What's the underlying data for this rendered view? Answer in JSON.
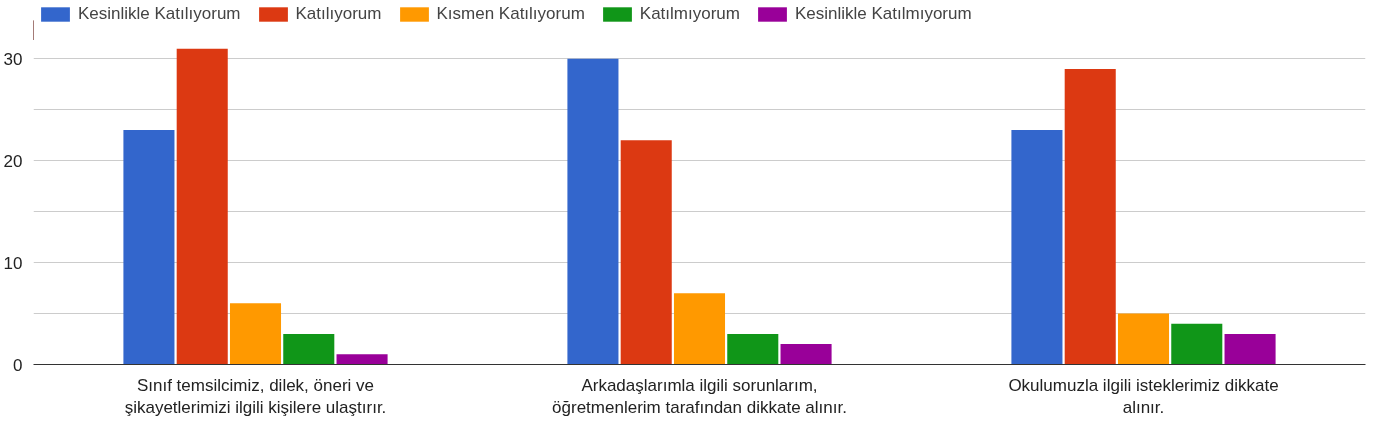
{
  "chart_data": {
    "type": "bar",
    "categories": [
      "Sınıf temsilcimiz, dilek, öneri ve şikayetlerimizi ilgili kişilere ulaştırır.",
      "Arkadaşlarımla ilgili sorunlarım, öğretmenlerim tarafından dikkate alınır.",
      "Okulumuzla ilgili isteklerimiz dikkate alınır."
    ],
    "series": [
      {
        "name": "Kesinlikle Katılıyorum",
        "color": "#3366cc",
        "values": [
          23,
          30,
          23
        ]
      },
      {
        "name": "Katılıyorum",
        "color": "#dc3912",
        "values": [
          31,
          22,
          29
        ]
      },
      {
        "name": "Kısmen Katılıyorum",
        "color": "#ff9900",
        "values": [
          6,
          7,
          5
        ]
      },
      {
        "name": "Katılmıyorum",
        "color": "#109618",
        "values": [
          3,
          3,
          4
        ]
      },
      {
        "name": "Kesinlikle Katılmıyorum",
        "color": "#990099",
        "values": [
          1,
          2,
          3
        ]
      }
    ],
    "ylim": [
      0,
      31
    ],
    "yticks": [
      0,
      {
        "value": 5,
        "label": null
      },
      10,
      {
        "value": 15,
        "label": null
      },
      20,
      {
        "value": 25,
        "label": null
      },
      30
    ],
    "grid": "y",
    "legend": "top"
  }
}
